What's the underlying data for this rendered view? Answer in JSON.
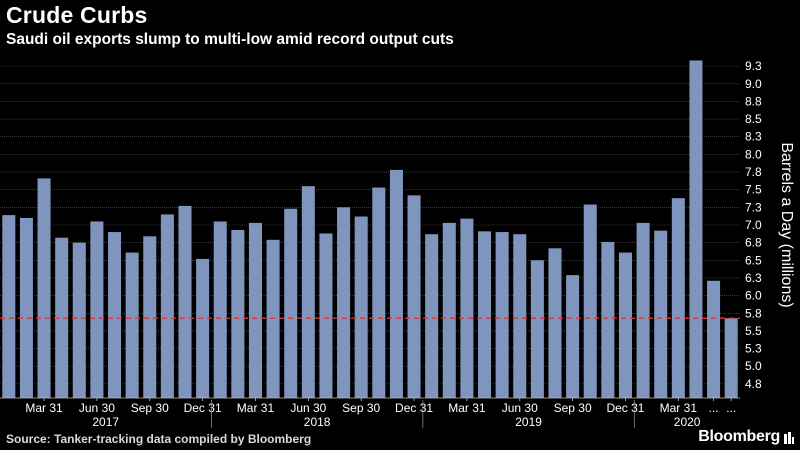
{
  "header": {
    "title": "Crude Curbs",
    "subtitle": "Saudi oil exports slump to multi-low amid record output cuts"
  },
  "footer": {
    "source": "Source: Tanker-tracking data compiled by Bloomberg",
    "brand": "Bloomberg"
  },
  "colors": {
    "background": "#000000",
    "bar": "#7f95bd",
    "grid": "#5a5a5a",
    "reference_line": "#e8322e",
    "text": "#ffffff"
  },
  "chart_data": {
    "type": "bar",
    "title": "Crude Curbs",
    "subtitle": "Saudi oil exports slump to multi-low amid record output cuts",
    "ylabel": "Barrels a Day (millions)",
    "xlabel": "",
    "ylim": [
      4.6,
      9.5
    ],
    "yticks": [
      "4.8",
      "5.0",
      "5.3",
      "5.5",
      "5.8",
      "6.0",
      "6.3",
      "6.5",
      "6.8",
      "7.0",
      "7.3",
      "7.5",
      "7.8",
      "8.0",
      "8.3",
      "8.5",
      "8.8",
      "9.0",
      "9.3"
    ],
    "ytick_values": [
      4.8,
      5.05,
      5.3,
      5.55,
      5.8,
      6.05,
      6.3,
      6.55,
      6.8,
      7.05,
      7.3,
      7.55,
      7.8,
      8.05,
      8.3,
      8.55,
      8.8,
      9.05,
      9.3
    ],
    "x_tick_labels": [
      "Mar 31",
      "Jun 30",
      "Sep 30",
      "Dec 31",
      "Mar 31",
      "Jun 30",
      "Sep 30",
      "Dec 31",
      "Mar 31",
      "Jun 30",
      "Sep 30",
      "Dec 31",
      "Mar 31",
      "...",
      "..."
    ],
    "year_labels": [
      "2017",
      "2018",
      "2019",
      "2020"
    ],
    "values": [
      7.19,
      7.15,
      7.71,
      6.87,
      6.8,
      7.1,
      6.95,
      6.66,
      6.89,
      7.2,
      7.32,
      6.57,
      7.1,
      6.98,
      7.08,
      6.84,
      7.28,
      7.6,
      6.93,
      7.3,
      7.17,
      7.58,
      7.83,
      7.47,
      6.92,
      7.08,
      7.14,
      6.96,
      6.95,
      6.92,
      6.55,
      6.72,
      6.34,
      7.34,
      6.81,
      6.66,
      7.08,
      6.97,
      7.43,
      9.38,
      6.26,
      5.73
    ],
    "reference_value": 5.73,
    "grid": true
  }
}
